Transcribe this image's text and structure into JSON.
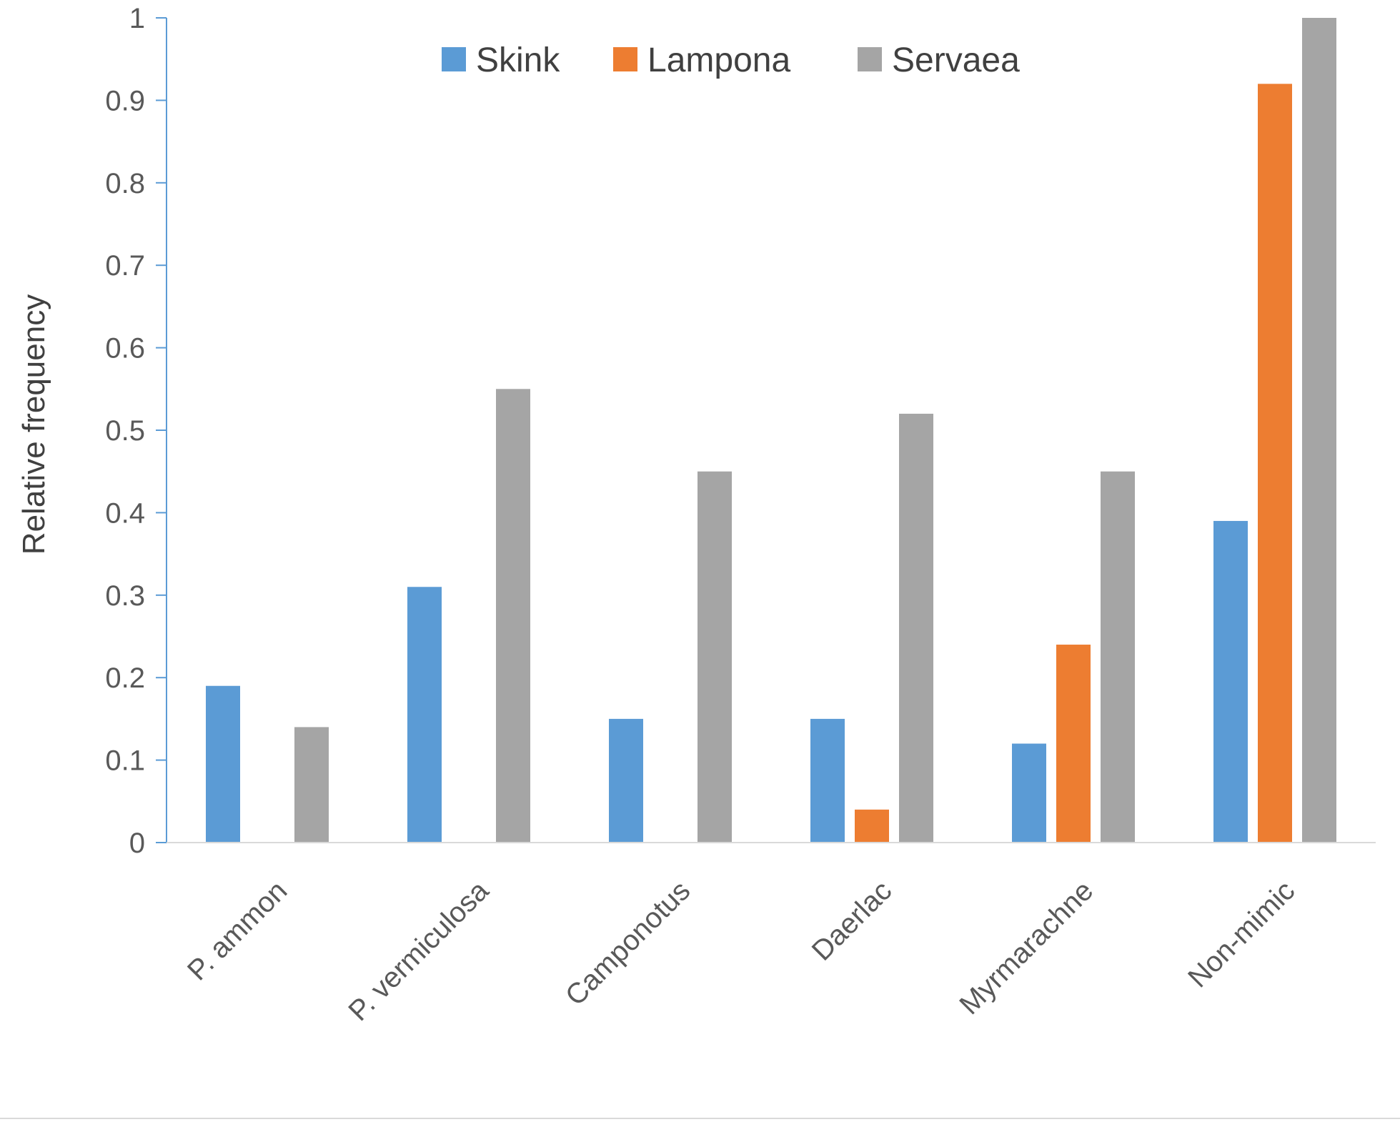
{
  "chart_data": {
    "type": "bar",
    "title": "",
    "xlabel": "",
    "ylabel": "Relative frequency",
    "ylim": [
      0,
      1
    ],
    "yticks": [
      "0",
      "0.1",
      "0.2",
      "0.3",
      "0.4",
      "0.5",
      "0.6",
      "0.7",
      "0.8",
      "0.9",
      "1"
    ],
    "legend_position": "top",
    "grid": false,
    "categories": [
      "P. ammon",
      "P. vermiculosa",
      "Camponotus",
      "Daerlac",
      "Myrmarachne",
      "Non-mimic"
    ],
    "series": [
      {
        "name": "Skink",
        "color": "#5b9bd5",
        "values": [
          0.19,
          0.31,
          0.15,
          0.15,
          0.12,
          0.39
        ]
      },
      {
        "name": "Lampona",
        "color": "#ed7d31",
        "values": [
          0.0,
          0.0,
          0.0,
          0.04,
          0.24,
          0.92
        ]
      },
      {
        "name": "Servaea",
        "color": "#a5a5a5",
        "values": [
          0.14,
          0.55,
          0.45,
          0.52,
          0.45,
          1.0
        ]
      }
    ],
    "axis_color": "#5b9bd5",
    "baseline_color": "#d9d9d9"
  }
}
